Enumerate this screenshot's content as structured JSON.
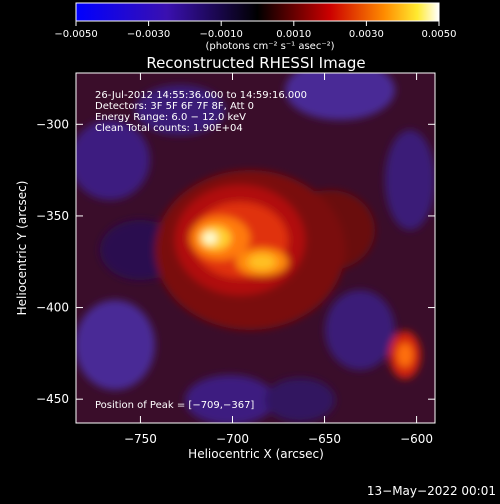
{
  "chart_data": {
    "type": "heatmap",
    "title": "Reconstructed RHESSI Image",
    "xlabel": "Heliocentric X (arcsec)",
    "ylabel": "Heliocentric Y (arcsec)",
    "xlim": [
      -785,
      -590
    ],
    "ylim": [
      -463,
      -272
    ],
    "x_ticks": [
      -750,
      -700,
      -650,
      -600
    ],
    "y_ticks": [
      -300,
      -350,
      -400,
      -450
    ],
    "x_tick_labels": [
      "−750",
      "−700",
      "−650",
      "−600"
    ],
    "y_tick_labels": [
      "−300",
      "−350",
      "−400",
      "−450"
    ],
    "colorbar": {
      "range": [
        -0.005,
        0.005
      ],
      "ticks": [
        -0.005,
        -0.003,
        -0.001,
        0.001,
        0.003,
        0.005
      ],
      "tick_labels": [
        "−0.0050",
        "−0.0030",
        "−0.0010",
        "0.0010",
        "0.0030",
        "0.0050"
      ],
      "unit_label": "(photons cm⁻² s⁻¹ asec⁻²)"
    },
    "annotations": [
      "26-Jul-2012 14:55:36.000 to 14:59:16.000",
      "Detectors: 3F 5F 6F 7F 8F, Att 0",
      "Energy Range: 6.0 − 12.0 keV",
      "Clean    Total counts: 1.90E+04"
    ],
    "peak_label": "Position of Peak = [−709,−367]",
    "peak_position": [
      -709,
      -367
    ],
    "footer_date": "13−May−2022 00:01",
    "colors": {
      "negative": "#0000ff",
      "zero": "#000000",
      "positive_low": "#cc0000",
      "positive_high": "#ffffff"
    }
  }
}
